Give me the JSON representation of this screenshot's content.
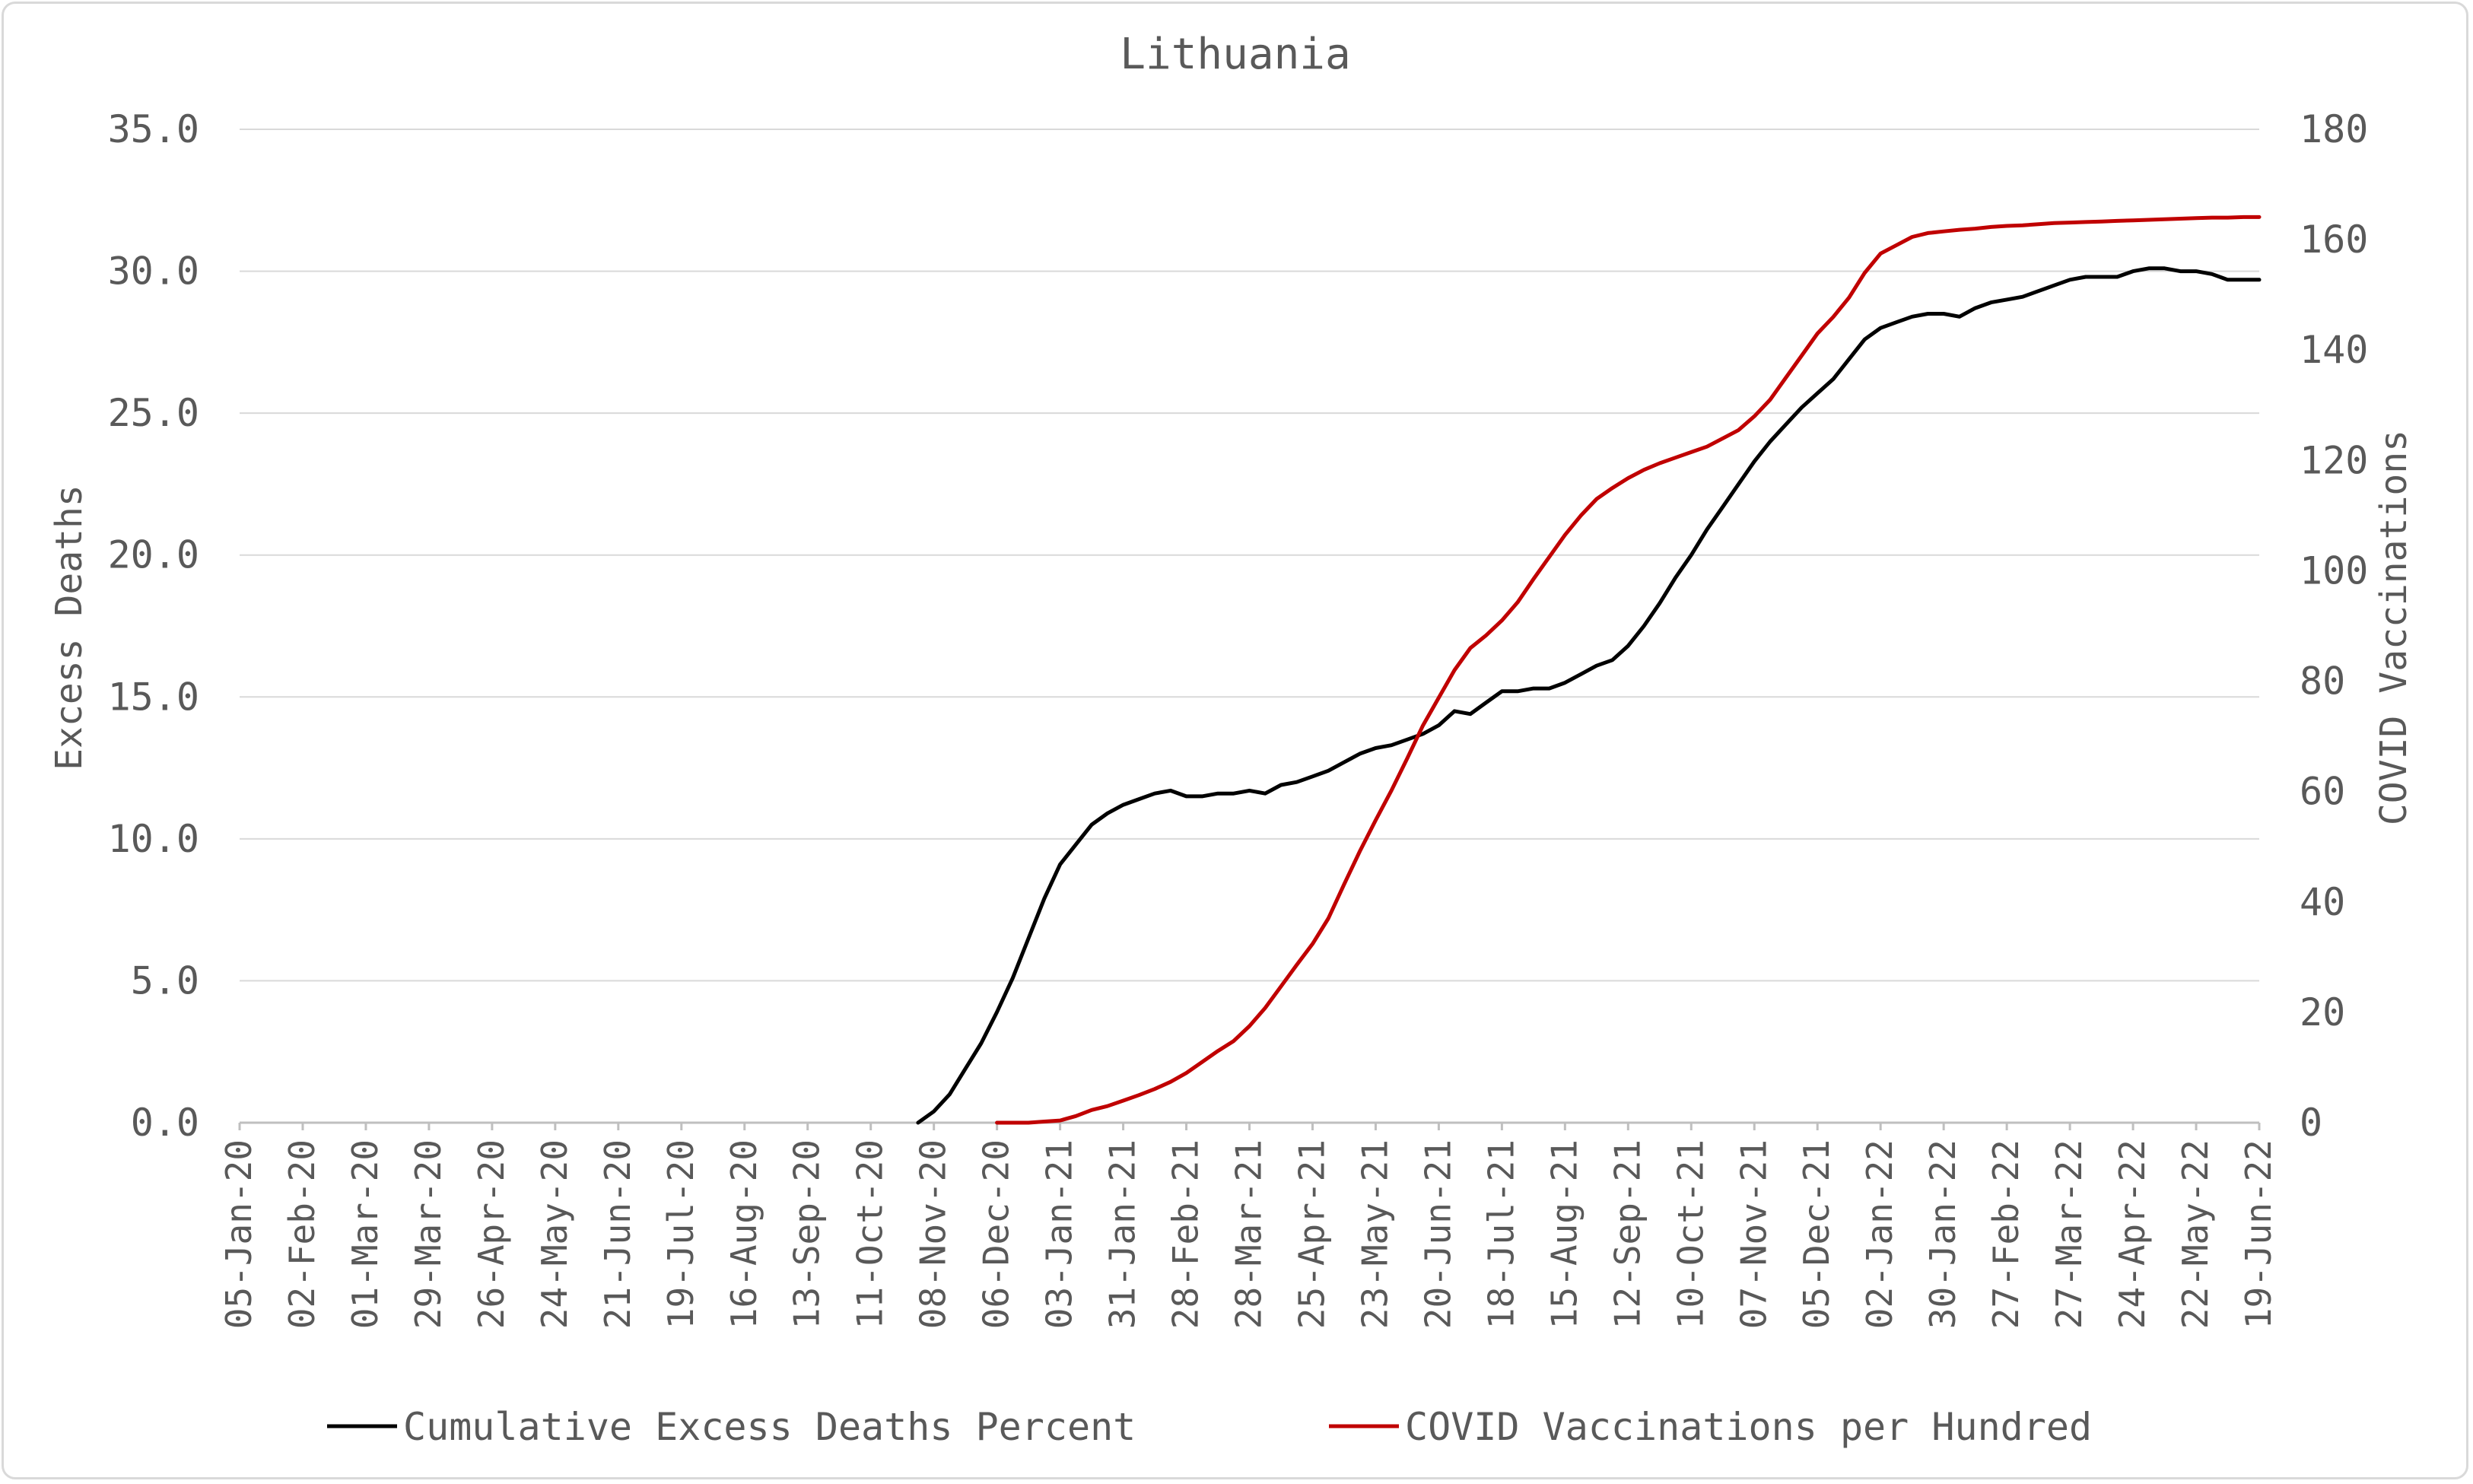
{
  "chart_data": {
    "type": "line",
    "title": "Lithuania",
    "ylabel": "Excess Deaths",
    "y2label": "COVID Vaccinations",
    "ylim": [
      0,
      35
    ],
    "y2lim": [
      0,
      180
    ],
    "grid": true,
    "legend_position": "bottom",
    "y_ticks": [
      "0.0",
      "5.0",
      "10.0",
      "15.0",
      "20.0",
      "25.0",
      "30.0",
      "35.0"
    ],
    "y2_ticks": [
      "0",
      "20",
      "40",
      "60",
      "80",
      "100",
      "120",
      "140",
      "160",
      "180"
    ],
    "x_tick_labels": [
      "05-Jan-20",
      "02-Feb-20",
      "01-Mar-20",
      "29-Mar-20",
      "26-Apr-20",
      "24-May-20",
      "21-Jun-20",
      "19-Jul-20",
      "16-Aug-20",
      "13-Sep-20",
      "11-Oct-20",
      "08-Nov-20",
      "06-Dec-20",
      "03-Jan-21",
      "31-Jan-21",
      "28-Feb-21",
      "28-Mar-21",
      "25-Apr-21",
      "23-May-21",
      "20-Jun-21",
      "18-Jul-21",
      "15-Aug-21",
      "12-Sep-21",
      "10-Oct-21",
      "07-Nov-21",
      "05-Dec-21",
      "02-Jan-22",
      "30-Jan-22",
      "27-Feb-22",
      "27-Mar-22",
      "24-Apr-22",
      "22-May-22",
      "19-Jun-22"
    ],
    "series": [
      {
        "name": "Cumulative Excess Deaths Percent",
        "color": "#000000",
        "axis": "left",
        "x": [
          "01-Nov-20",
          "08-Nov-20",
          "15-Nov-20",
          "22-Nov-20",
          "29-Nov-20",
          "06-Dec-20",
          "13-Dec-20",
          "20-Dec-20",
          "27-Dec-20",
          "03-Jan-21",
          "10-Jan-21",
          "17-Jan-21",
          "24-Jan-21",
          "31-Jan-21",
          "07-Feb-21",
          "14-Feb-21",
          "21-Feb-21",
          "28-Feb-21",
          "07-Mar-21",
          "14-Mar-21",
          "21-Mar-21",
          "28-Mar-21",
          "04-Apr-21",
          "11-Apr-21",
          "18-Apr-21",
          "25-Apr-21",
          "02-May-21",
          "09-May-21",
          "16-May-21",
          "23-May-21",
          "30-May-21",
          "06-Jun-21",
          "13-Jun-21",
          "20-Jun-21",
          "27-Jun-21",
          "04-Jul-21",
          "11-Jul-21",
          "18-Jul-21",
          "25-Jul-21",
          "01-Aug-21",
          "08-Aug-21",
          "15-Aug-21",
          "22-Aug-21",
          "29-Aug-21",
          "05-Sep-21",
          "12-Sep-21",
          "19-Sep-21",
          "26-Sep-21",
          "03-Oct-21",
          "10-Oct-21",
          "17-Oct-21",
          "24-Oct-21",
          "31-Oct-21",
          "07-Nov-21",
          "14-Nov-21",
          "21-Nov-21",
          "28-Nov-21",
          "05-Dec-21",
          "12-Dec-21",
          "19-Dec-21",
          "26-Dec-21",
          "02-Jan-22",
          "09-Jan-22",
          "16-Jan-22",
          "23-Jan-22",
          "30-Jan-22",
          "06-Feb-22",
          "13-Feb-22",
          "20-Feb-22",
          "27-Feb-22",
          "06-Mar-22",
          "13-Mar-22",
          "20-Mar-22",
          "27-Mar-22",
          "03-Apr-22",
          "10-Apr-22",
          "17-Apr-22",
          "24-Apr-22",
          "01-May-22",
          "08-May-22",
          "15-May-22",
          "22-May-22",
          "29-May-22",
          "05-Jun-22",
          "12-Jun-22",
          "19-Jun-22"
        ],
        "y": [
          0.0,
          0.4,
          1.0,
          1.9,
          2.8,
          3.9,
          5.1,
          6.5,
          7.9,
          9.1,
          9.8,
          10.5,
          10.9,
          11.2,
          11.4,
          11.6,
          11.7,
          11.5,
          11.5,
          11.6,
          11.6,
          11.7,
          11.6,
          11.9,
          12.0,
          12.2,
          12.4,
          12.7,
          13.0,
          13.2,
          13.3,
          13.5,
          13.7,
          14.0,
          14.5,
          14.4,
          14.8,
          15.2,
          15.2,
          15.3,
          15.3,
          15.5,
          15.8,
          16.1,
          16.3,
          16.8,
          17.5,
          18.3,
          19.2,
          20.0,
          20.9,
          21.7,
          22.5,
          23.3,
          24.0,
          24.6,
          25.2,
          25.7,
          26.2,
          26.9,
          27.6,
          28.0,
          28.2,
          28.4,
          28.5,
          28.5,
          28.4,
          28.7,
          28.9,
          29.0,
          29.1,
          29.3,
          29.5,
          29.7,
          29.8,
          29.8,
          29.8,
          30.0,
          30.1,
          30.1,
          30.0,
          30.0,
          29.9,
          29.7,
          29.7,
          29.7
        ]
      },
      {
        "name": "COVID Vaccinations per Hundred",
        "color": "#c00000",
        "axis": "right",
        "x": [
          "06-Dec-20",
          "13-Dec-20",
          "20-Dec-20",
          "27-Dec-20",
          "03-Jan-21",
          "10-Jan-21",
          "17-Jan-21",
          "24-Jan-21",
          "31-Jan-21",
          "07-Feb-21",
          "14-Feb-21",
          "21-Feb-21",
          "28-Feb-21",
          "07-Mar-21",
          "14-Mar-21",
          "21-Mar-21",
          "28-Mar-21",
          "04-Apr-21",
          "11-Apr-21",
          "18-Apr-21",
          "25-Apr-21",
          "02-May-21",
          "09-May-21",
          "16-May-21",
          "23-May-21",
          "30-May-21",
          "06-Jun-21",
          "13-Jun-21",
          "20-Jun-21",
          "27-Jun-21",
          "04-Jul-21",
          "11-Jul-21",
          "18-Jul-21",
          "25-Jul-21",
          "01-Aug-21",
          "08-Aug-21",
          "15-Aug-21",
          "22-Aug-21",
          "29-Aug-21",
          "05-Sep-21",
          "12-Sep-21",
          "19-Sep-21",
          "26-Sep-21",
          "03-Oct-21",
          "10-Oct-21",
          "17-Oct-21",
          "24-Oct-21",
          "31-Oct-21",
          "07-Nov-21",
          "14-Nov-21",
          "21-Nov-21",
          "28-Nov-21",
          "05-Dec-21",
          "12-Dec-21",
          "19-Dec-21",
          "26-Dec-21",
          "02-Jan-22",
          "09-Jan-22",
          "16-Jan-22",
          "23-Jan-22",
          "30-Jan-22",
          "06-Feb-22",
          "13-Feb-22",
          "20-Feb-22",
          "27-Feb-22",
          "06-Mar-22",
          "13-Mar-22",
          "20-Mar-22",
          "27-Mar-22",
          "03-Apr-22",
          "10-Apr-22",
          "17-Apr-22",
          "24-Apr-22",
          "01-May-22",
          "08-May-22",
          "15-May-22",
          "22-May-22",
          "29-May-22",
          "05-Jun-22",
          "12-Jun-22",
          "19-Jun-22"
        ],
        "y": [
          0.0,
          0.0,
          0.0,
          0.2,
          0.4,
          1.2,
          2.3,
          3.0,
          4.0,
          5.0,
          6.1,
          7.4,
          9.0,
          11.0,
          13.0,
          14.8,
          17.5,
          20.8,
          24.7,
          28.6,
          32.4,
          37.0,
          43.2,
          49.2,
          54.8,
          60.2,
          66.0,
          72.0,
          77.0,
          82.0,
          86.0,
          88.3,
          91.0,
          94.3,
          98.5,
          102.5,
          106.5,
          110.0,
          113.0,
          115.0,
          116.8,
          118.3,
          119.5,
          120.5,
          121.5,
          122.5,
          124.0,
          125.5,
          128.0,
          131.0,
          135.0,
          139.0,
          143.0,
          146.0,
          149.5,
          154.0,
          157.5,
          159.0,
          160.5,
          161.2,
          161.5,
          161.8,
          162.0,
          162.3,
          162.5,
          162.6,
          162.8,
          163.0,
          163.1,
          163.2,
          163.3,
          163.4,
          163.5,
          163.6,
          163.7,
          163.8,
          163.9,
          164.0,
          164.0,
          164.1,
          164.1
        ]
      }
    ]
  }
}
